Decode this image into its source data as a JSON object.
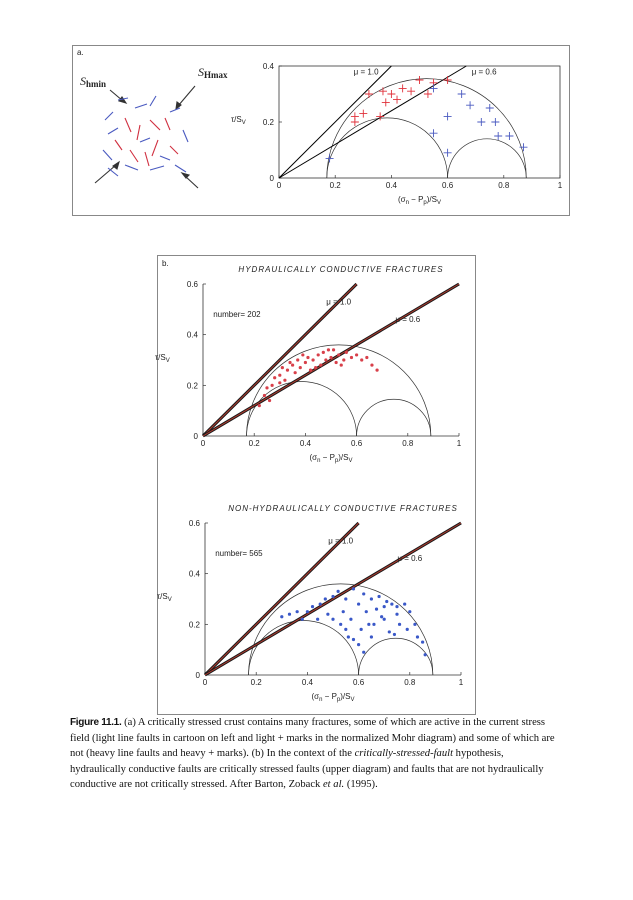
{
  "panels": {
    "a": "a.",
    "b": "b."
  },
  "cartoon": {
    "s_hmin": {
      "symbol": "S",
      "sub": "hmin"
    },
    "s_hmax": {
      "symbol": "S",
      "sub": "Hmax"
    }
  },
  "chart_data": [
    {
      "type": "scatter",
      "frame": true,
      "marker": "plus",
      "xlabel": [
        "(σ",
        "n",
        " − P",
        "p",
        ")/S",
        "V"
      ],
      "ylabel": [
        "τ/S",
        "V"
      ],
      "xlim": [
        0,
        1
      ],
      "ylim": [
        0,
        0.4
      ],
      "xticks": [
        0,
        0.2,
        0.4,
        0.6,
        0.8,
        1
      ],
      "yticks": [
        0,
        0.2,
        0.4
      ],
      "circles": [
        [
          0.17,
          0.88
        ],
        [
          0.17,
          0.6
        ],
        [
          0.6,
          0.88
        ]
      ],
      "friction": [
        {
          "value": 1.0,
          "label": "μ = 1.0"
        },
        {
          "value": 0.6,
          "label": "μ = 0.6"
        }
      ],
      "friction_colors": [
        "#000000"
      ],
      "series": [
        {
          "color": "#e0303a",
          "x": [
            0.27,
            0.3,
            0.36,
            0.27,
            0.32,
            0.37,
            0.4,
            0.44,
            0.47,
            0.5,
            0.55,
            0.6,
            0.38,
            0.42,
            0.53
          ],
          "values": [
            0.22,
            0.23,
            0.22,
            0.2,
            0.3,
            0.31,
            0.3,
            0.32,
            0.31,
            0.35,
            0.34,
            0.35,
            0.27,
            0.28,
            0.3
          ]
        },
        {
          "color": "#4a5ac0",
          "x": [
            0.18,
            0.55,
            0.65,
            0.68,
            0.75,
            0.6,
            0.72,
            0.77,
            0.78,
            0.82,
            0.87,
            0.55,
            0.6
          ],
          "values": [
            0.07,
            0.32,
            0.3,
            0.26,
            0.25,
            0.22,
            0.2,
            0.2,
            0.15,
            0.15,
            0.11,
            0.16,
            0.09
          ]
        }
      ]
    },
    {
      "type": "scatter",
      "frame": false,
      "marker": "circle",
      "title": "HYDRAULICALLY CONDUCTIVE FRACTURES",
      "annotation": "number= 202",
      "xlabel": [
        "(σ",
        "n",
        " − P",
        "p",
        ")/S",
        "V"
      ],
      "ylabel": [
        "τ/S",
        "V"
      ],
      "xlim": [
        0,
        1
      ],
      "ylim": [
        0,
        0.6
      ],
      "xticks": [
        0,
        0.2,
        0.4,
        0.6,
        0.8,
        1
      ],
      "yticks": [
        0,
        0.2,
        0.4,
        0.6
      ],
      "circles": [
        [
          0.17,
          0.89
        ],
        [
          0.17,
          0.6
        ],
        [
          0.6,
          0.89
        ]
      ],
      "friction": [
        {
          "value": 1.0,
          "label": "μ = 1.0"
        },
        {
          "value": 0.6,
          "label": "μ = 0.6"
        }
      ],
      "friction_colors": [
        "#1a1a1a",
        "#b03a2e"
      ],
      "series": [
        {
          "color": "#d8404a",
          "x": [
            0.22,
            0.24,
            0.25,
            0.27,
            0.28,
            0.3,
            0.31,
            0.32,
            0.33,
            0.35,
            0.36,
            0.37,
            0.38,
            0.4,
            0.41,
            0.42,
            0.43,
            0.45,
            0.46,
            0.47,
            0.48,
            0.5,
            0.51,
            0.52,
            0.53,
            0.55,
            0.56,
            0.58,
            0.6,
            0.62,
            0.64,
            0.66,
            0.68,
            0.3,
            0.34,
            0.39,
            0.44,
            0.49,
            0.54,
            0.26
          ],
          "values": [
            0.12,
            0.16,
            0.19,
            0.2,
            0.23,
            0.24,
            0.27,
            0.22,
            0.26,
            0.28,
            0.25,
            0.3,
            0.27,
            0.29,
            0.31,
            0.26,
            0.3,
            0.32,
            0.28,
            0.33,
            0.3,
            0.31,
            0.34,
            0.29,
            0.32,
            0.3,
            0.33,
            0.31,
            0.32,
            0.3,
            0.31,
            0.28,
            0.26,
            0.21,
            0.29,
            0.32,
            0.27,
            0.34,
            0.28,
            0.14
          ]
        }
      ]
    },
    {
      "type": "scatter",
      "frame": false,
      "marker": "circle",
      "title": "NON-HYDRAULICALLY CONDUCTIVE FRACTURES",
      "annotation": "number= 565",
      "xlabel": [
        "(σ",
        "n",
        " − P",
        "p",
        ")/S",
        "V"
      ],
      "ylabel": [
        "τ/S",
        "V"
      ],
      "xlim": [
        0,
        1
      ],
      "ylim": [
        0,
        0.6
      ],
      "xticks": [
        0,
        0.2,
        0.4,
        0.6,
        0.8,
        1
      ],
      "yticks": [
        0,
        0.2,
        0.4,
        0.6
      ],
      "circles": [
        [
          0.17,
          0.89
        ],
        [
          0.17,
          0.6
        ],
        [
          0.6,
          0.89
        ]
      ],
      "friction": [
        {
          "value": 1.0,
          "label": "μ = 1.0"
        },
        {
          "value": 0.6,
          "label": "μ = 0.6"
        }
      ],
      "friction_colors": [
        "#1a1a1a",
        "#b03a2e"
      ],
      "series": [
        {
          "color": "#3a58c8",
          "x": [
            0.3,
            0.33,
            0.36,
            0.4,
            0.42,
            0.45,
            0.47,
            0.5,
            0.52,
            0.54,
            0.55,
            0.57,
            0.58,
            0.6,
            0.61,
            0.62,
            0.63,
            0.65,
            0.66,
            0.67,
            0.68,
            0.7,
            0.71,
            0.72,
            0.73,
            0.75,
            0.76,
            0.78,
            0.79,
            0.8,
            0.82,
            0.83,
            0.85,
            0.86,
            0.5,
            0.55,
            0.6,
            0.65,
            0.7,
            0.75,
            0.62,
            0.58,
            0.53,
            0.48,
            0.44,
            0.38,
            0.56,
            0.64,
            0.69,
            0.74
          ],
          "values": [
            0.23,
            0.24,
            0.25,
            0.25,
            0.27,
            0.28,
            0.3,
            0.31,
            0.33,
            0.25,
            0.3,
            0.22,
            0.34,
            0.28,
            0.18,
            0.32,
            0.25,
            0.3,
            0.2,
            0.26,
            0.31,
            0.22,
            0.29,
            0.17,
            0.28,
            0.24,
            0.2,
            0.28,
            0.18,
            0.25,
            0.2,
            0.15,
            0.13,
            0.08,
            0.22,
            0.18,
            0.12,
            0.15,
            0.27,
            0.27,
            0.09,
            0.14,
            0.2,
            0.24,
            0.22,
            0.22,
            0.15,
            0.2,
            0.23,
            0.16
          ]
        }
      ]
    }
  ],
  "caption": {
    "label": "Figure 11.1.",
    "text_1": " (a) A critically stressed crust contains many fractures, some of which are active in the current stress field (light line faults in cartoon on left and light + marks in the normalized Mohr diagram) and some of which are not (heavy line faults and heavy + marks). (b) In the context of the ",
    "italic_1": "critically-stressed-fault",
    "text_2": " hypothesis, hydraulically conductive faults are critically stressed faults (upper diagram) and faults that are not hydraulically conductive are not critically stressed. After Barton, Zoback ",
    "italic_2": "et al.",
    "text_3": " (1995)."
  }
}
